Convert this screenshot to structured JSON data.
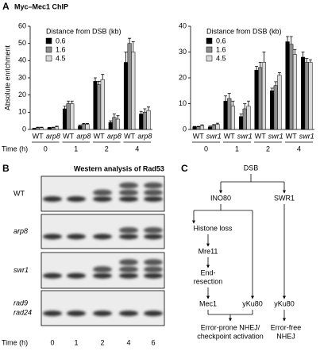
{
  "panel_labels": [
    "A",
    "B",
    "C"
  ],
  "chart_data": [
    {
      "type": "bar",
      "title": "Myc–Mec1 ChIP",
      "y_label": "Absolute enrichment",
      "legend_title": "Distance from DSB (kb)",
      "legend": "upper left",
      "categories": [
        "WT",
        "arp8",
        "WT",
        "arp8",
        "WT",
        "arp8",
        "WT",
        "arp8"
      ],
      "x_groups": [
        "0",
        "1",
        "2",
        "4"
      ],
      "x_group_label": "Time (h)",
      "ylim": [
        0,
        60
      ],
      "yticks": [
        0,
        10,
        20,
        30,
        40,
        50,
        60
      ],
      "series": [
        {
          "name": "0.6",
          "color": "#000000",
          "values": [
            0.5,
            1,
            12,
            2,
            28,
            4,
            39,
            9
          ],
          "errors": [
            0.2,
            0.2,
            1.5,
            0.5,
            2,
            1,
            6,
            1.5
          ]
        },
        {
          "name": "1.6",
          "color": "#8c8c8c",
          "values": [
            1,
            1,
            15,
            3,
            26,
            7,
            50,
            10
          ],
          "errors": [
            0.3,
            0.3,
            1.5,
            0.5,
            2,
            2,
            3,
            2
          ]
        },
        {
          "name": "4.5",
          "color": "#d9d9d9",
          "values": [
            1,
            1.5,
            15,
            3,
            29,
            6,
            45,
            11
          ],
          "errors": [
            0.3,
            0.4,
            1.5,
            0.5,
            3,
            2,
            6,
            2
          ]
        }
      ]
    },
    {
      "type": "bar",
      "legend_title": "Distance from DSB (kb)",
      "legend": "upper left",
      "categories": [
        "WT",
        "swr1",
        "WT",
        "swr1",
        "WT",
        "swr1",
        "WT",
        "swr1"
      ],
      "x_groups": [
        "0",
        "1",
        "2",
        "4"
      ],
      "ylim": [
        0,
        40
      ],
      "yticks": [
        0,
        10,
        20,
        30,
        40
      ],
      "series": [
        {
          "name": "0.6",
          "color": "#000000",
          "values": [
            1,
            1,
            11,
            5,
            23,
            15,
            34,
            28
          ],
          "errors": [
            0.2,
            0.3,
            2,
            1,
            1.5,
            1,
            2,
            2
          ]
        },
        {
          "name": "1.6",
          "color": "#8c8c8c",
          "values": [
            1,
            1.5,
            12,
            8,
            24,
            17,
            33,
            26
          ],
          "errors": [
            0.2,
            0.4,
            2,
            2,
            2,
            1.5,
            3,
            1.5
          ]
        },
        {
          "name": "4.5",
          "color": "#d9d9d9",
          "values": [
            1.5,
            2,
            9,
            9,
            26,
            21,
            29,
            26
          ],
          "errors": [
            0.3,
            0.4,
            2,
            2,
            4,
            1,
            2,
            1
          ]
        }
      ]
    }
  ],
  "western": {
    "title": "Western analysis of Rad53",
    "rows": [
      [
        "WT"
      ],
      [
        "arp8"
      ],
      [
        "swr1"
      ],
      [
        "rad9",
        "rad24"
      ]
    ],
    "time_label": "Time (h)",
    "times": [
      "0",
      "1",
      "2",
      "4",
      "6"
    ]
  },
  "diagram": {
    "nodes": [
      {
        "label": [
          "DSB"
        ]
      },
      {
        "label": [
          "INO80"
        ]
      },
      {
        "label": [
          "SWR1"
        ]
      },
      {
        "label": [
          "Histone loss"
        ]
      },
      {
        "label": [
          "Mre11"
        ]
      },
      {
        "label": [
          "End-",
          "resection"
        ]
      },
      {
        "label": [
          "Mec1"
        ]
      },
      {
        "label": [
          "yKu80"
        ]
      },
      {
        "label": [
          "yKu80"
        ]
      },
      {
        "label": [
          "Error-prone NHEJ/",
          "checkpoint activation"
        ]
      },
      {
        "label": [
          "Error-free",
          "NHEJ"
        ]
      }
    ]
  }
}
